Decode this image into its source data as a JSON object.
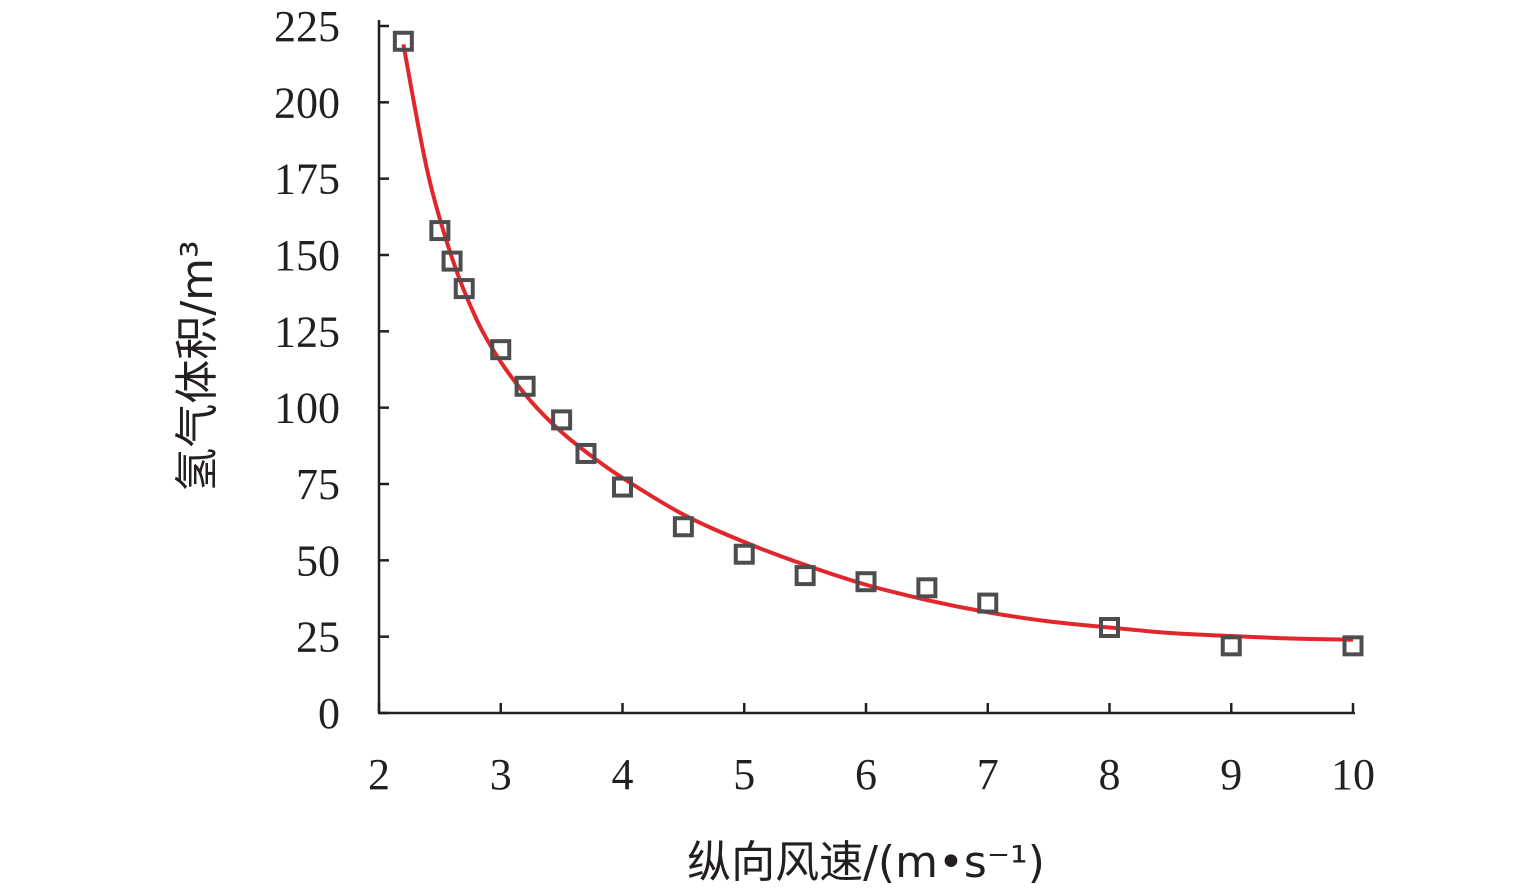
{
  "chart_data": {
    "type": "scatter",
    "title": "",
    "xlabel": "纵向风速/(m•s⁻¹)",
    "ylabel": "氢气体积/m³",
    "xlim": [
      2,
      10
    ],
    "ylim": [
      0,
      225
    ],
    "xticks": [
      "2",
      "3",
      "4",
      "5",
      "6",
      "7",
      "8",
      "9",
      "10"
    ],
    "yticks": [
      "0",
      "25",
      "50",
      "75",
      "100",
      "125",
      "150",
      "175",
      "200",
      "225"
    ],
    "grid": false,
    "series": [
      {
        "type": "scatter",
        "marker": "square",
        "color": "#4d4d4f",
        "x": [
          2.2,
          2.5,
          2.6,
          2.7,
          3.0,
          3.2,
          3.5,
          3.7,
          4.0,
          4.5,
          5.0,
          5.5,
          6.0,
          6.5,
          7.0,
          8.0,
          9.0,
          10.0
        ],
        "y": [
          220,
          158,
          148,
          139,
          119,
          107,
          96,
          85,
          74,
          61,
          52,
          45,
          43,
          41,
          36,
          28,
          22,
          22
        ]
      },
      {
        "type": "line",
        "color": "#e1262c",
        "x": [
          2.2,
          2.4,
          2.6,
          2.8,
          3.0,
          3.25,
          3.5,
          3.75,
          4.0,
          4.5,
          5.0,
          5.5,
          6.0,
          6.5,
          7.0,
          7.5,
          8.0,
          8.5,
          9.0,
          9.5,
          10.0
        ],
        "y": [
          219,
          177,
          149,
          129,
          115,
          102,
          92,
          84,
          77,
          65,
          56,
          48.5,
          42,
          37,
          33,
          30,
          28,
          26.2,
          25.2,
          24.4,
          24
        ]
      }
    ]
  }
}
